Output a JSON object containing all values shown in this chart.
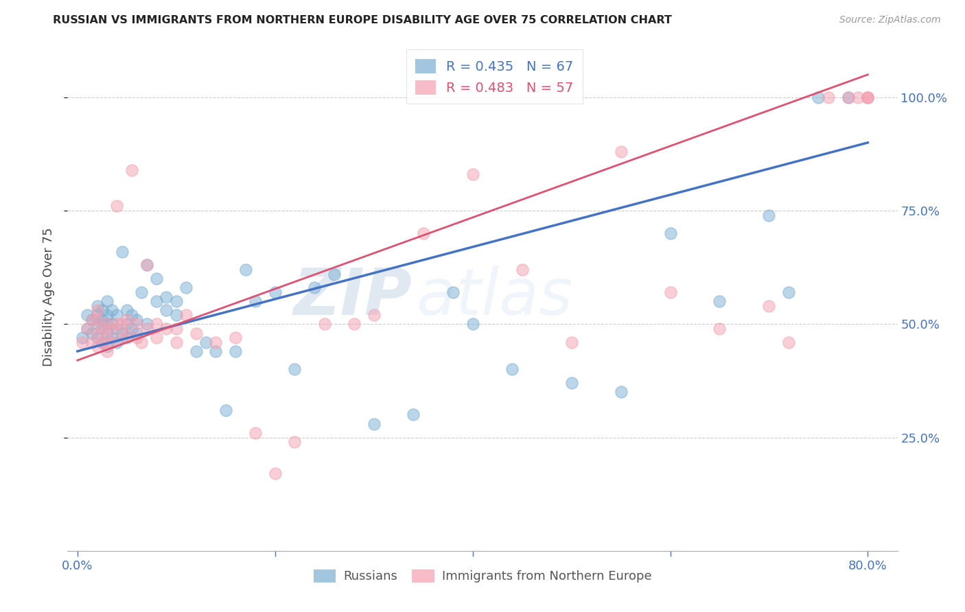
{
  "title": "RUSSIAN VS IMMIGRANTS FROM NORTHERN EUROPE DISABILITY AGE OVER 75 CORRELATION CHART",
  "source": "Source: ZipAtlas.com",
  "ylabel": "Disability Age Over 75",
  "ytick_labels": [
    "100.0%",
    "75.0%",
    "50.0%",
    "25.0%"
  ],
  "ytick_values": [
    1.0,
    0.75,
    0.5,
    0.25
  ],
  "xlim": [
    -0.01,
    0.83
  ],
  "ylim": [
    0.0,
    1.12
  ],
  "blue_R": 0.435,
  "blue_N": 67,
  "pink_R": 0.483,
  "pink_N": 57,
  "blue_color": "#7BAFD4",
  "pink_color": "#F4A0B0",
  "blue_line_color": "#4472C4",
  "pink_line_color": "#E05070",
  "watermark_zip": "ZIP",
  "watermark_atlas": "atlas",
  "legend_label_blue": "Russians",
  "legend_label_pink": "Immigrants from Northern Europe",
  "blue_line_x0": 0.0,
  "blue_line_y0": 0.44,
  "blue_line_x1": 0.8,
  "blue_line_y1": 0.9,
  "pink_line_x0": 0.0,
  "pink_line_y0": 0.42,
  "pink_line_x1": 0.8,
  "pink_line_y1": 1.05,
  "blue_scatter_x": [
    0.005,
    0.01,
    0.01,
    0.015,
    0.015,
    0.02,
    0.02,
    0.02,
    0.02,
    0.025,
    0.025,
    0.025,
    0.025,
    0.03,
    0.03,
    0.03,
    0.03,
    0.03,
    0.035,
    0.035,
    0.035,
    0.04,
    0.04,
    0.04,
    0.045,
    0.045,
    0.05,
    0.05,
    0.05,
    0.055,
    0.055,
    0.06,
    0.06,
    0.065,
    0.07,
    0.07,
    0.08,
    0.08,
    0.09,
    0.09,
    0.1,
    0.1,
    0.11,
    0.12,
    0.13,
    0.14,
    0.15,
    0.16,
    0.17,
    0.18,
    0.2,
    0.22,
    0.24,
    0.26,
    0.3,
    0.34,
    0.38,
    0.4,
    0.44,
    0.5,
    0.55,
    0.6,
    0.65,
    0.7,
    0.72,
    0.75,
    0.78
  ],
  "blue_scatter_y": [
    0.47,
    0.49,
    0.52,
    0.48,
    0.51,
    0.47,
    0.5,
    0.52,
    0.54,
    0.46,
    0.49,
    0.51,
    0.53,
    0.45,
    0.48,
    0.5,
    0.52,
    0.55,
    0.47,
    0.5,
    0.53,
    0.46,
    0.49,
    0.52,
    0.48,
    0.66,
    0.47,
    0.5,
    0.53,
    0.49,
    0.52,
    0.48,
    0.51,
    0.57,
    0.5,
    0.63,
    0.55,
    0.6,
    0.53,
    0.56,
    0.52,
    0.55,
    0.58,
    0.44,
    0.46,
    0.44,
    0.31,
    0.44,
    0.62,
    0.55,
    0.57,
    0.4,
    0.58,
    0.61,
    0.28,
    0.3,
    0.57,
    0.5,
    0.4,
    0.37,
    0.35,
    0.7,
    0.55,
    0.74,
    0.57,
    1.0,
    1.0
  ],
  "pink_scatter_x": [
    0.005,
    0.01,
    0.015,
    0.015,
    0.02,
    0.02,
    0.02,
    0.02,
    0.025,
    0.025,
    0.03,
    0.03,
    0.03,
    0.035,
    0.035,
    0.04,
    0.04,
    0.045,
    0.045,
    0.05,
    0.05,
    0.055,
    0.06,
    0.06,
    0.065,
    0.07,
    0.07,
    0.08,
    0.08,
    0.09,
    0.1,
    0.1,
    0.11,
    0.12,
    0.14,
    0.16,
    0.18,
    0.2,
    0.22,
    0.25,
    0.28,
    0.3,
    0.35,
    0.4,
    0.45,
    0.5,
    0.55,
    0.6,
    0.65,
    0.7,
    0.72,
    0.76,
    0.78,
    0.79,
    0.8,
    0.8,
    0.8
  ],
  "pink_scatter_y": [
    0.46,
    0.49,
    0.46,
    0.51,
    0.45,
    0.48,
    0.51,
    0.53,
    0.46,
    0.49,
    0.44,
    0.47,
    0.5,
    0.46,
    0.49,
    0.76,
    0.5,
    0.47,
    0.5,
    0.48,
    0.51,
    0.84,
    0.47,
    0.5,
    0.46,
    0.63,
    0.49,
    0.47,
    0.5,
    0.49,
    0.46,
    0.49,
    0.52,
    0.48,
    0.46,
    0.47,
    0.26,
    0.17,
    0.24,
    0.5,
    0.5,
    0.52,
    0.7,
    0.83,
    0.62,
    0.46,
    0.88,
    0.57,
    0.49,
    0.54,
    0.46,
    1.0,
    1.0,
    1.0,
    1.0,
    1.0,
    1.0
  ]
}
